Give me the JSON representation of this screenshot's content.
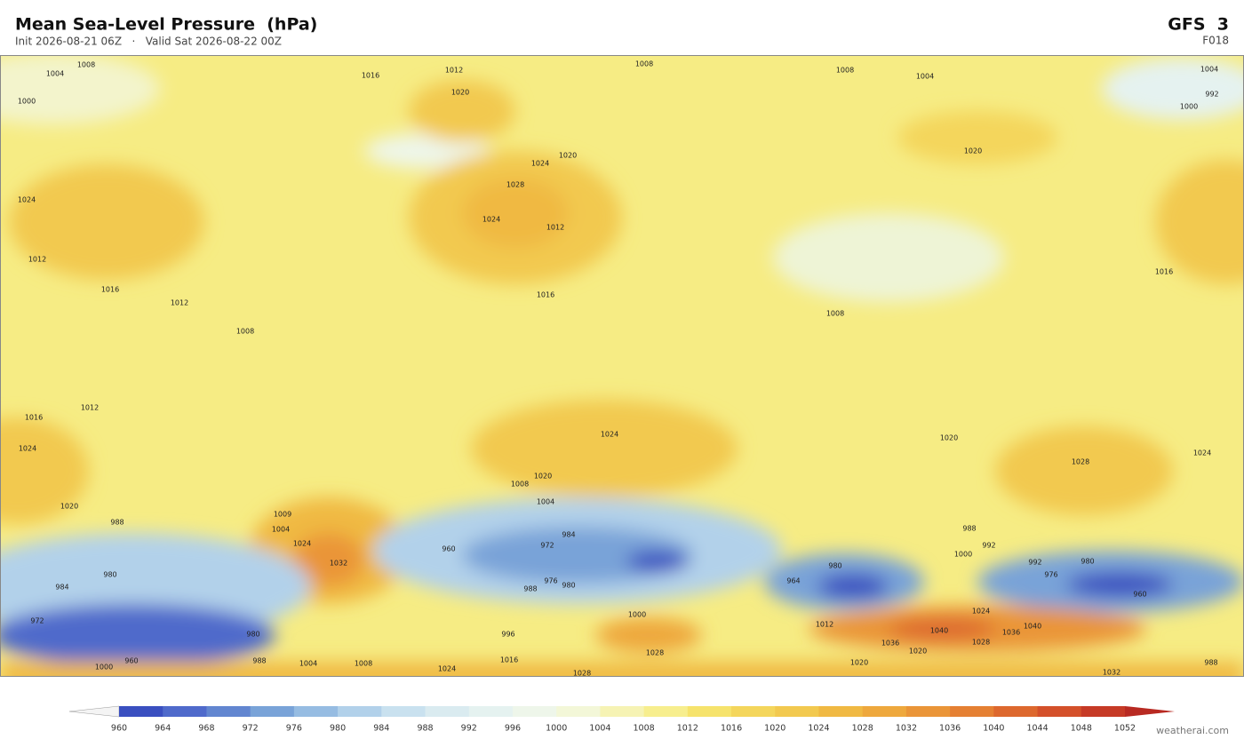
{
  "header": {
    "title": "Mean Sea-Level Pressure  (hPa)",
    "subtitle": "Init 2026-08-21 06Z   ·   Valid Sat 2026-08-22 00Z",
    "model": "GFS  3",
    "forecast": "F018"
  },
  "contour_labels": [
    1008,
    1004,
    1000,
    1016,
    1012,
    1020,
    1008,
    1008,
    1004,
    1004,
    992,
    1000,
    1024,
    1012,
    1016,
    1012,
    1008,
    1024,
    1028,
    1012,
    1020,
    1024,
    1016,
    1008,
    1020,
    1016,
    1016,
    1012,
    1024,
    1020,
    988,
    984,
    980,
    972,
    1000,
    960,
    1009,
    1004,
    1024,
    1032,
    1024,
    1020,
    1008,
    1004,
    960,
    972,
    984,
    976,
    980,
    988,
    980,
    964,
    992,
    988,
    1000,
    992,
    980,
    976,
    960,
    1020,
    1028,
    1024,
    1024,
    1036,
    1040,
    1040,
    1028,
    1020,
    1036,
    1020,
    1028,
    1028,
    1032,
    1024,
    1016,
    1008,
    1004,
    988,
    980,
    996,
    1000,
    1012,
    988
  ],
  "colorbar": {
    "levels": [
      960,
      964,
      968,
      972,
      976,
      980,
      984,
      988,
      992,
      996,
      1000,
      1004,
      1008,
      1012,
      1016,
      1020,
      1024,
      1028,
      1032,
      1036,
      1040,
      1044,
      1048,
      1052
    ],
    "colors": [
      "#f4f4f4",
      "#3a4fc0",
      "#4f6acb",
      "#6286d0",
      "#79a3d8",
      "#96bce2",
      "#b2d1ea",
      "#c9e1ef",
      "#daebf0",
      "#e5f2f0",
      "#eef6ea",
      "#f3f7d8",
      "#f6f3b4",
      "#f7ee8e",
      "#f6e36c",
      "#f4d65c",
      "#f2c94f",
      "#f0b943",
      "#eea83d",
      "#ea9538",
      "#e58033",
      "#dd682e",
      "#d4502a",
      "#c63a26",
      "#b82a22"
    ]
  },
  "footer": "weatherai.com"
}
